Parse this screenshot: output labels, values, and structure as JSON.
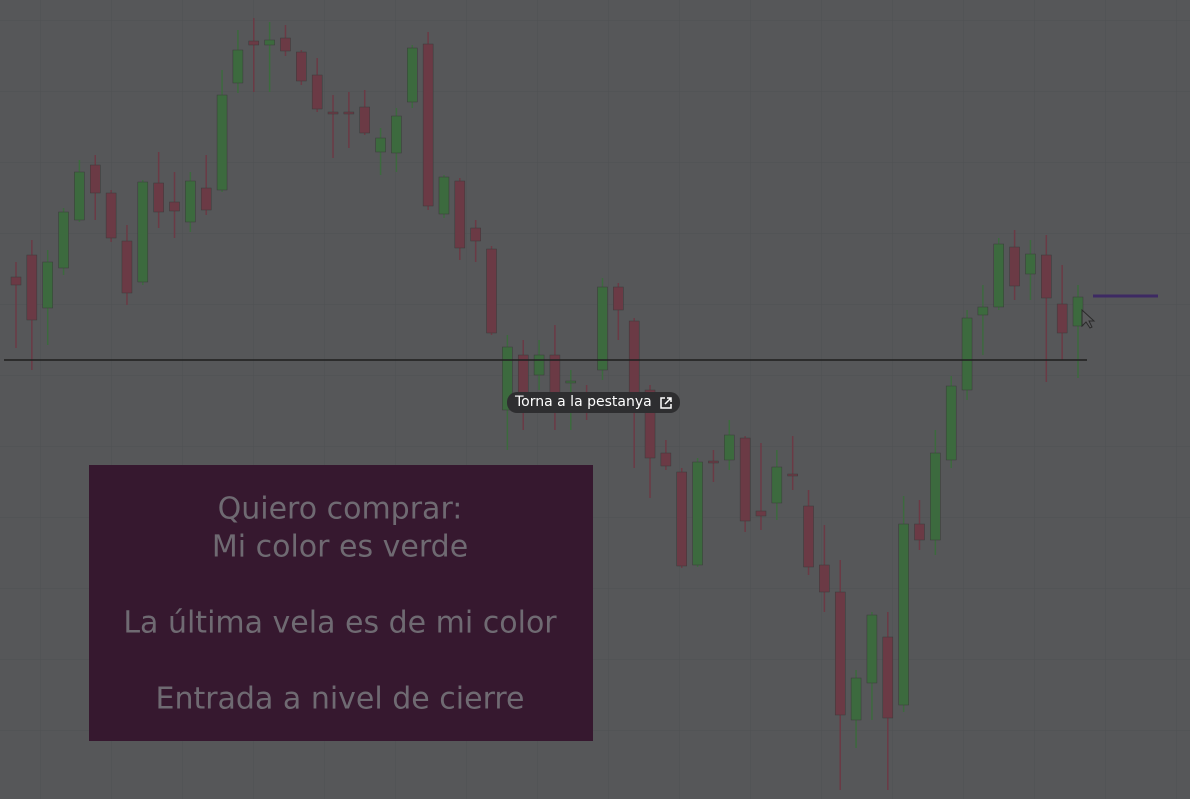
{
  "chart_data": {
    "type": "candlestick",
    "up_color": "#3c6a3e",
    "down_color": "#6b3a45",
    "ylim": [
      0,
      800
    ],
    "open": [
      523,
      545,
      492,
      532,
      580,
      635,
      607,
      559,
      518,
      617,
      598,
      578,
      612,
      610,
      717,
      759,
      755,
      762,
      748,
      725,
      688,
      688,
      693,
      648,
      647,
      698,
      756,
      586,
      619,
      572,
      551,
      390,
      445,
      425,
      445,
      417,
      400,
      430,
      513,
      479,
      410,
      347,
      328,
      235,
      339,
      340,
      362,
      289,
      297,
      326,
      294,
      235,
      208,
      80,
      117,
      163,
      95,
      276,
      260,
      340,
      410,
      485,
      493,
      553,
      526,
      545,
      496,
      474
    ],
    "high": [
      538,
      560,
      550,
      592,
      640,
      645,
      610,
      575,
      620,
      648,
      628,
      628,
      645,
      730,
      770,
      782,
      778,
      775,
      750,
      742,
      705,
      708,
      710,
      672,
      692,
      755,
      768,
      625,
      622,
      580,
      554,
      465,
      460,
      460,
      475,
      430,
      415,
      522,
      517,
      482,
      415,
      360,
      332,
      342,
      350,
      380,
      364,
      357,
      350,
      364,
      310,
      275,
      240,
      130,
      188,
      188,
      304,
      300,
      370,
      424,
      490,
      515,
      562,
      570,
      560,
      565,
      535,
      515
    ],
    "low": [
      452,
      430,
      455,
      525,
      578,
      580,
      558,
      495,
      515,
      572,
      562,
      568,
      585,
      608,
      707,
      708,
      708,
      744,
      715,
      688,
      642,
      652,
      665,
      625,
      628,
      692,
      590,
      582,
      540,
      538,
      465,
      350,
      370,
      410,
      370,
      370,
      380,
      420,
      460,
      332,
      302,
      330,
      232,
      233,
      318,
      330,
      268,
      270,
      280,
      310,
      225,
      188,
      10,
      52,
      80,
      10,
      88,
      250,
      245,
      332,
      400,
      445,
      490,
      500,
      500,
      418,
      440,
      422
    ],
    "close": [
      515,
      480,
      538,
      588,
      628,
      607,
      562,
      507,
      618,
      588,
      589,
      619,
      590,
      705,
      750,
      755,
      760,
      749,
      719,
      691,
      686,
      686,
      667,
      662,
      684,
      752,
      594,
      623,
      552,
      559,
      467,
      453,
      392,
      445,
      400,
      419,
      398,
      513,
      490,
      405,
      342,
      334,
      234,
      338,
      337,
      365,
      279,
      284,
      333,
      324,
      233,
      208,
      85,
      122,
      185,
      82,
      276,
      260,
      347,
      414,
      482,
      493,
      556,
      514,
      546,
      502,
      467,
      503
    ],
    "level": 440,
    "annotations": [
      "Quiero comprar:",
      "Mi color es verde",
      "La última vela es de mi color",
      "Entrada a nivel de cierre"
    ]
  },
  "ui": {
    "tooltip": "Torna a la pestanya"
  }
}
